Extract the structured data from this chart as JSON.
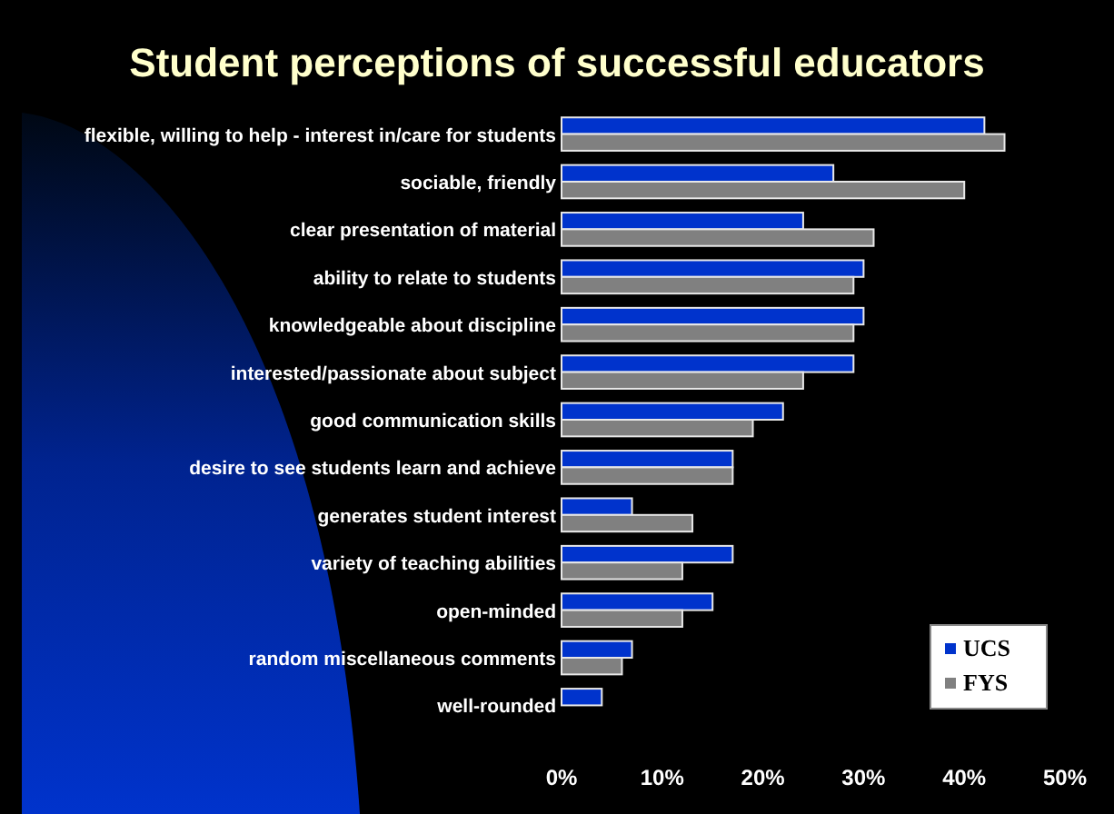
{
  "chart_data": {
    "type": "bar",
    "orientation": "horizontal",
    "title": "Student perceptions of successful educators",
    "categories": [
      "flexible, willing to help - interest in/care for students",
      "sociable, friendly",
      "clear presentation of material",
      "ability to relate to students",
      "knowledgeable about discipline",
      "interested/passionate about subject",
      "good communication skills",
      "desire to see students learn and achieve",
      "generates student interest",
      "variety of teaching abilities",
      "open-minded",
      "random miscellaneous comments",
      "well-rounded"
    ],
    "series": [
      {
        "name": "UCS",
        "color": "#0033cc",
        "values": [
          42,
          27,
          24,
          30,
          30,
          29,
          22,
          17,
          7,
          17,
          15,
          7,
          4
        ]
      },
      {
        "name": "FYS",
        "color": "#808080",
        "values": [
          44,
          40,
          31,
          29,
          29,
          24,
          19,
          17,
          13,
          12,
          12,
          6,
          null
        ]
      }
    ],
    "xlim": [
      0,
      50
    ],
    "xticks": [
      {
        "value": 0,
        "label": "0%"
      },
      {
        "value": 10,
        "label": "10%"
      },
      {
        "value": 20,
        "label": "20%"
      },
      {
        "value": 30,
        "label": "30%"
      },
      {
        "value": 40,
        "label": "40%"
      },
      {
        "value": 50,
        "label": "50%"
      }
    ],
    "grid": false,
    "legend": "bottom right"
  }
}
